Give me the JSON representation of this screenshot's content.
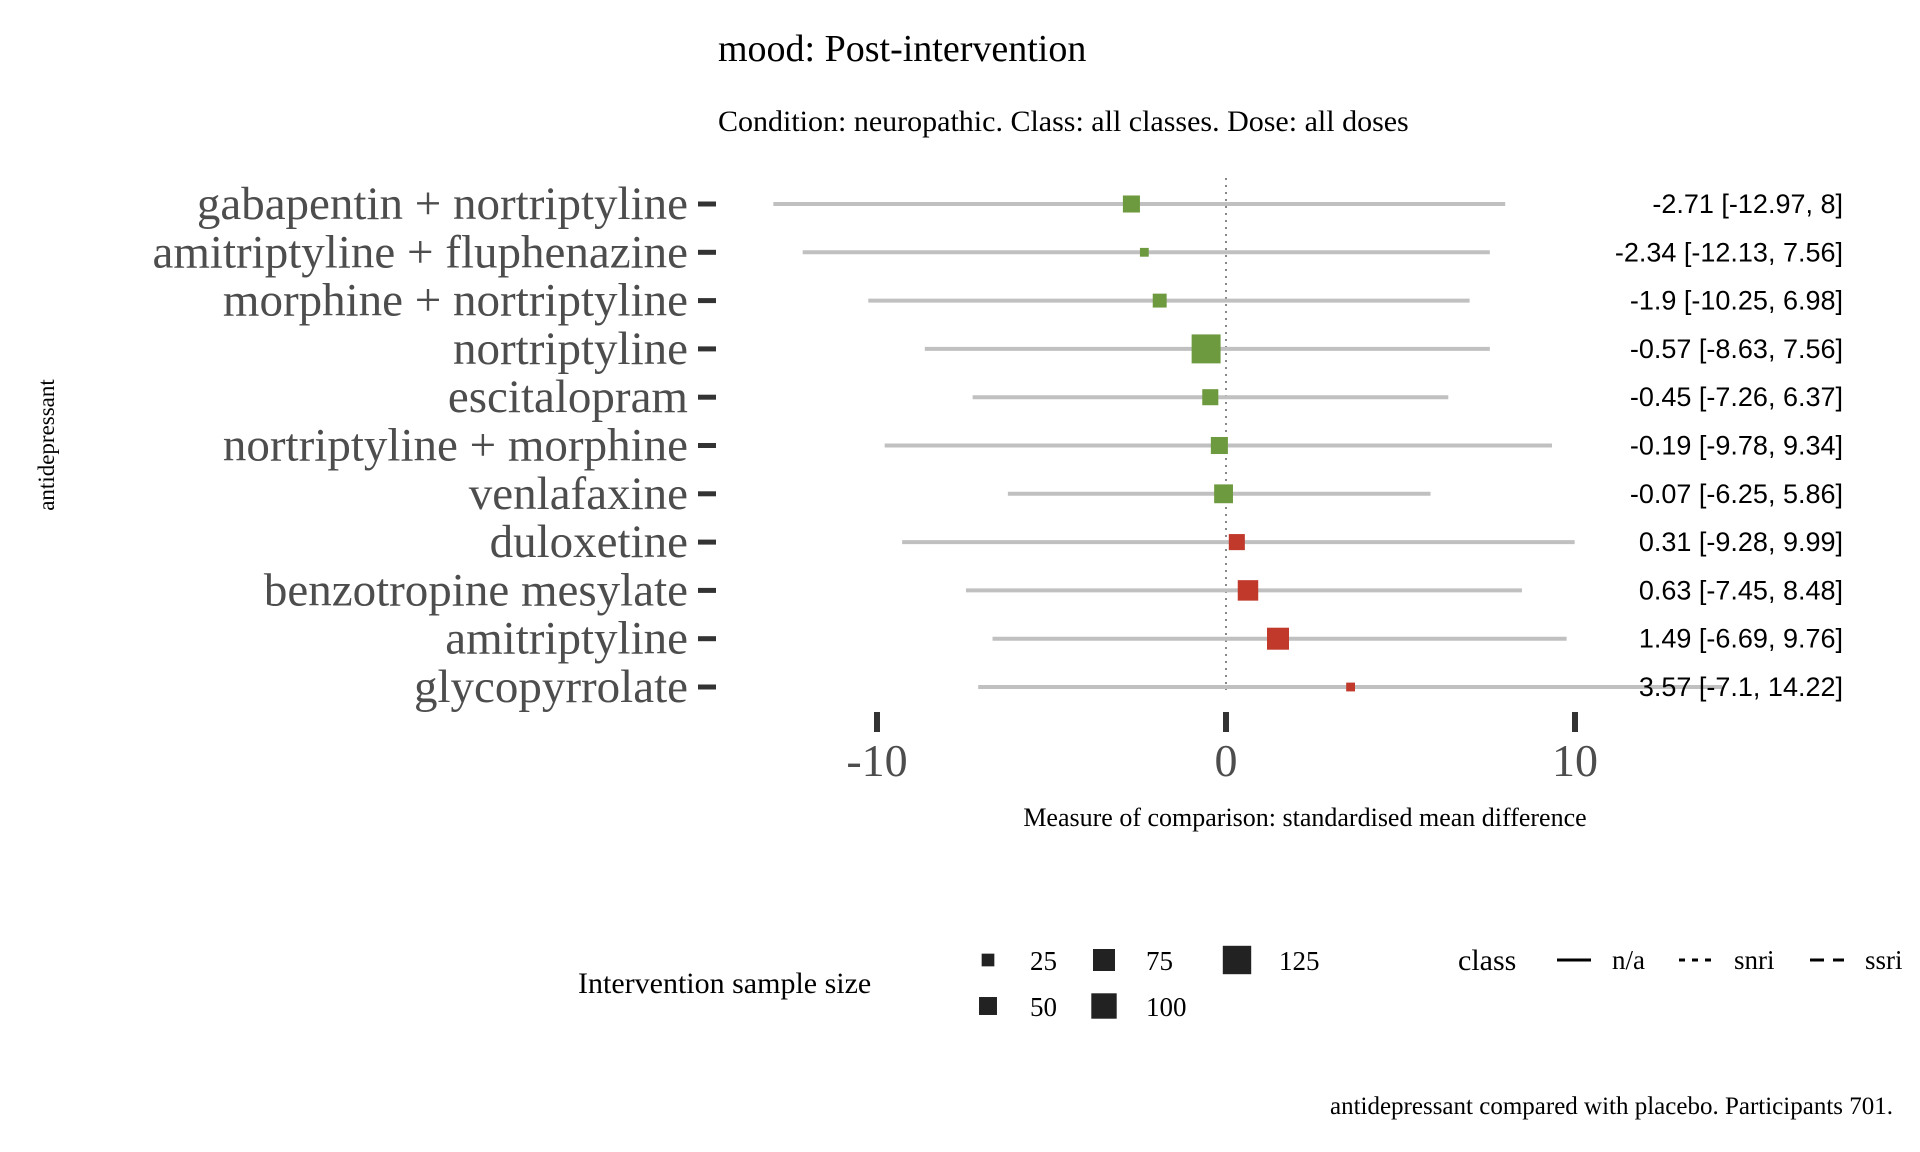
{
  "chart_data": {
    "type": "forest",
    "title": "mood: Post-intervention",
    "subtitle": "Condition: neuropathic. Class: all classes. Dose: all doses",
    "ylabel": "antidepressant",
    "xlabel": "Measure of comparison: standardised mean difference",
    "xlim": [
      -14.5,
      14.5
    ],
    "xticks": [
      -10,
      0,
      10
    ],
    "xtick_labels": [
      "-10",
      "0",
      "10"
    ],
    "reference_line": 0,
    "colors": {
      "negative": "#6e9a3f",
      "positive": "#c0392b",
      "ci": "#c0c0c0"
    },
    "rows": [
      {
        "label": "gabapentin + nortriptyline",
        "est": -2.71,
        "lo": -12.97,
        "hi": 8,
        "class": "ssri",
        "n": 45,
        "text": "-2.71 [-12.97, 8]"
      },
      {
        "label": "amitriptyline + fluphenazine",
        "est": -2.34,
        "lo": -12.13,
        "hi": 7.56,
        "class": "ssri",
        "n": 12,
        "text": "-2.34 [-12.13, 7.56]"
      },
      {
        "label": "morphine + nortriptyline",
        "est": -1.9,
        "lo": -10.25,
        "hi": 6.98,
        "class": "ssri",
        "n": 30,
        "text": "-1.9 [-10.25, 6.98]"
      },
      {
        "label": "nortriptyline",
        "est": -0.57,
        "lo": -8.63,
        "hi": 7.56,
        "class": "ssri",
        "n": 130,
        "text": "-0.57 [-8.63, 7.56]"
      },
      {
        "label": "escitalopram",
        "est": -0.45,
        "lo": -7.26,
        "hi": 6.37,
        "class": "ssri",
        "n": 40,
        "text": "-0.45 [-7.26, 6.37]"
      },
      {
        "label": "nortriptyline + morphine",
        "est": -0.19,
        "lo": -9.78,
        "hi": 9.34,
        "class": "ssri",
        "n": 45,
        "text": "-0.19 [-9.78, 9.34]"
      },
      {
        "label": "venlafaxine",
        "est": -0.07,
        "lo": -6.25,
        "hi": 5.86,
        "class": "ssri",
        "n": 55,
        "text": "-0.07 [-6.25, 5.86]"
      },
      {
        "label": "duloxetine",
        "est": 0.31,
        "lo": -9.28,
        "hi": 9.99,
        "class": "snri",
        "n": 40,
        "text": "0.31 [-9.28, 9.99]"
      },
      {
        "label": "benzotropine mesylate",
        "est": 0.63,
        "lo": -7.45,
        "hi": 8.48,
        "class": "n/a",
        "n": 65,
        "text": "0.63 [-7.45, 8.48]"
      },
      {
        "label": "amitriptyline",
        "est": 1.49,
        "lo": -6.69,
        "hi": 9.76,
        "class": "ssri",
        "n": 75,
        "text": "1.49 [-6.69, 9.76]"
      },
      {
        "label": "glycopyrrolate",
        "est": 3.57,
        "lo": -7.1,
        "hi": 14.22,
        "class": "n/a",
        "n": 12,
        "text": "3.57 [-7.1, 14.22]"
      }
    ],
    "legend_size": {
      "title": "Intervention sample size",
      "entries": [
        {
          "label": "25",
          "n": 25
        },
        {
          "label": "50",
          "n": 50
        },
        {
          "label": "75",
          "n": 75
        },
        {
          "label": "100",
          "n": 100
        },
        {
          "label": "125",
          "n": 125
        }
      ]
    },
    "legend_class": {
      "title": "class",
      "entries": [
        {
          "label": "n/a",
          "linetype": "solid"
        },
        {
          "label": "snri",
          "linetype": "dotted"
        },
        {
          "label": "ssri",
          "linetype": "dashed"
        }
      ]
    },
    "caption": "antidepressant compared with placebo. Participants 701."
  }
}
